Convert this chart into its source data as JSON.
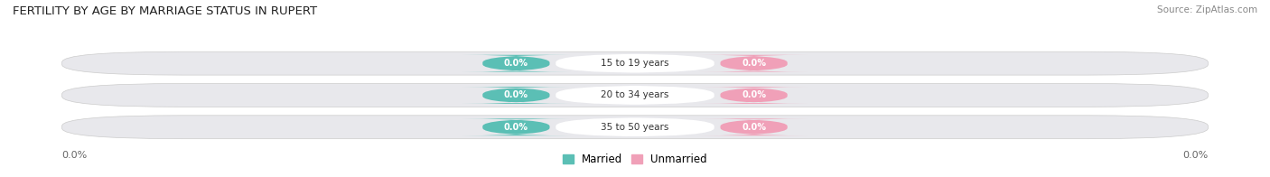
{
  "title": "FERTILITY BY AGE BY MARRIAGE STATUS IN RUPERT",
  "source": "Source: ZipAtlas.com",
  "categories": [
    "15 to 19 years",
    "20 to 34 years",
    "35 to 50 years"
  ],
  "married_values": [
    0.0,
    0.0,
    0.0
  ],
  "unmarried_values": [
    0.0,
    0.0,
    0.0
  ],
  "married_color": "#5BBFB5",
  "unmarried_color": "#F0A0B8",
  "bar_bg_color": "#E8E8EC",
  "fig_bg_color": "#FFFFFF",
  "axis_label_color": "#666666",
  "title_color": "#222222",
  "source_color": "#888888",
  "category_text_color": "#333333",
  "xlim_left": "0.0%",
  "xlim_right": "0.0%",
  "legend_married": "Married",
  "legend_unmarried": "Unmarried"
}
